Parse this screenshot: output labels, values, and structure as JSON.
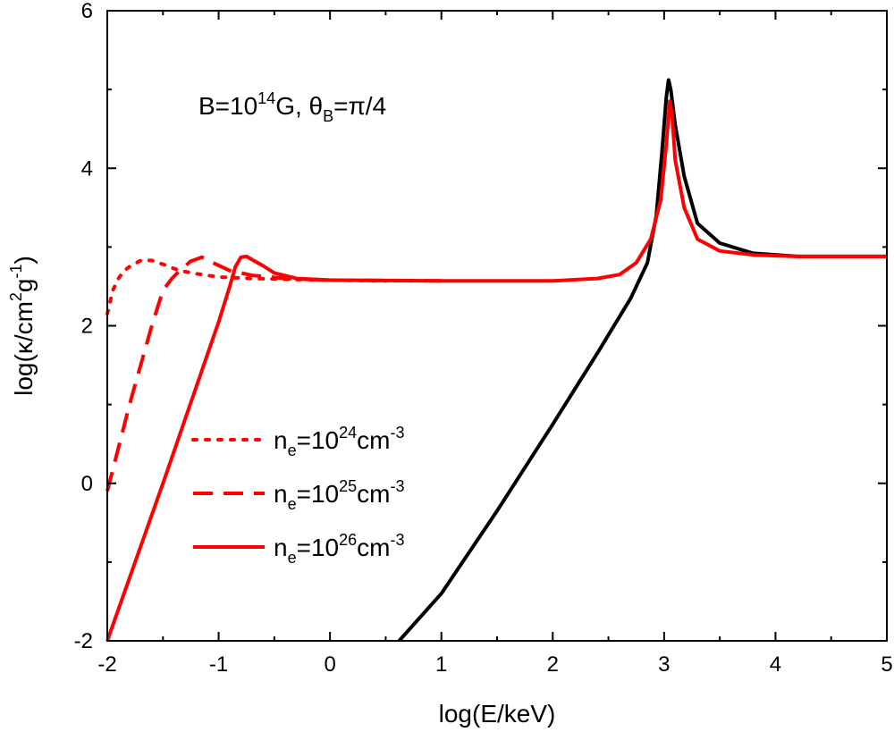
{
  "chart_data": {
    "type": "line",
    "xlabel": "log(E/keV)",
    "ylabel": "log(κ/cm²g⁻¹)",
    "ylabel_parts": {
      "prefix": "log(κ/cm",
      "sup1": "2",
      "mid": "g",
      "sup2": "-1",
      "suffix": ")"
    },
    "xlim": [
      -2,
      5
    ],
    "ylim": [
      -2,
      6
    ],
    "x_ticks": [
      -2,
      -1,
      0,
      1,
      2,
      3,
      4,
      5
    ],
    "y_ticks": [
      -2,
      0,
      2,
      4,
      6
    ],
    "x_tick_labels": [
      "-2",
      "-1",
      "0",
      "1",
      "2",
      "3",
      "4",
      "5"
    ],
    "y_tick_labels": [
      "-2",
      "0",
      "2",
      "4",
      "6"
    ],
    "grid": false,
    "legend_position": "lower-left",
    "annotation": {
      "B_prefix": "B=10",
      "B_exp": "14",
      "B_suffix": "G, ",
      "theta": "θ",
      "theta_sub": "B",
      "theta_rest": "=π/4"
    },
    "series": [
      {
        "name": "black",
        "color": "#000000",
        "style": "solid",
        "points": [
          [
            0.62,
            -2.0
          ],
          [
            1.0,
            -1.4
          ],
          [
            1.5,
            -0.35
          ],
          [
            2.0,
            0.75
          ],
          [
            2.4,
            1.65
          ],
          [
            2.7,
            2.35
          ],
          [
            2.85,
            2.8
          ],
          [
            2.93,
            3.4
          ],
          [
            2.98,
            4.2
          ],
          [
            3.02,
            4.9
          ],
          [
            3.04,
            5.12
          ],
          [
            3.06,
            5.0
          ],
          [
            3.1,
            4.55
          ],
          [
            3.18,
            3.9
          ],
          [
            3.3,
            3.3
          ],
          [
            3.5,
            3.05
          ],
          [
            3.8,
            2.92
          ],
          [
            4.2,
            2.88
          ],
          [
            5.0,
            2.88
          ]
        ]
      },
      {
        "name": "n_e=10^26cm^-3",
        "color": "#ff0000",
        "style": "solid",
        "legend": {
          "prefix": "n",
          "sub": "e",
          "mid": "=10",
          "sup": "26",
          "unit": "cm",
          "unit_sup": "-3"
        },
        "points": [
          [
            -2.0,
            -2.0
          ],
          [
            -1.5,
            0.0
          ],
          [
            -1.0,
            2.05
          ],
          [
            -0.9,
            2.5
          ],
          [
            -0.85,
            2.75
          ],
          [
            -0.8,
            2.87
          ],
          [
            -0.75,
            2.88
          ],
          [
            -0.7,
            2.84
          ],
          [
            -0.6,
            2.76
          ],
          [
            -0.5,
            2.67
          ],
          [
            -0.3,
            2.6
          ],
          [
            0.0,
            2.58
          ],
          [
            1.0,
            2.57
          ],
          [
            2.0,
            2.57
          ],
          [
            2.4,
            2.6
          ],
          [
            2.6,
            2.65
          ],
          [
            2.75,
            2.8
          ],
          [
            2.88,
            3.1
          ],
          [
            2.97,
            3.6
          ],
          [
            3.02,
            4.3
          ],
          [
            3.05,
            4.85
          ],
          [
            3.07,
            4.7
          ],
          [
            3.1,
            4.1
          ],
          [
            3.18,
            3.5
          ],
          [
            3.3,
            3.1
          ],
          [
            3.5,
            2.95
          ],
          [
            3.8,
            2.9
          ],
          [
            4.2,
            2.88
          ],
          [
            5.0,
            2.88
          ]
        ]
      },
      {
        "name": "n_e=10^25cm^-3",
        "color": "#ff0000",
        "style": "dashed",
        "legend": {
          "prefix": "n",
          "sub": "e",
          "mid": "=10",
          "sup": "25",
          "unit": "cm",
          "unit_sup": "-3"
        },
        "points": [
          [
            -2.0,
            -0.1
          ],
          [
            -1.8,
            1.0
          ],
          [
            -1.6,
            2.0
          ],
          [
            -1.5,
            2.45
          ],
          [
            -1.42,
            2.6
          ],
          [
            -1.35,
            2.7
          ],
          [
            -1.25,
            2.82
          ],
          [
            -1.15,
            2.87
          ],
          [
            -1.05,
            2.8
          ],
          [
            -0.9,
            2.7
          ],
          [
            -0.7,
            2.64
          ],
          [
            -0.4,
            2.6
          ],
          [
            0.0,
            2.58
          ],
          [
            1.0,
            2.57
          ]
        ]
      },
      {
        "name": "n_e=10^24cm^-3",
        "color": "#ff0000",
        "style": "dotted",
        "legend": {
          "prefix": "n",
          "sub": "e",
          "mid": "=10",
          "sup": "24",
          "unit": "cm",
          "unit_sup": "-3"
        },
        "points": [
          [
            -2.0,
            2.15
          ],
          [
            -1.95,
            2.45
          ],
          [
            -1.9,
            2.6
          ],
          [
            -1.85,
            2.7
          ],
          [
            -1.8,
            2.75
          ],
          [
            -1.7,
            2.83
          ],
          [
            -1.6,
            2.83
          ],
          [
            -1.5,
            2.78
          ],
          [
            -1.35,
            2.7
          ],
          [
            -1.2,
            2.66
          ],
          [
            -1.0,
            2.62
          ],
          [
            -0.7,
            2.6
          ],
          [
            -0.4,
            2.59
          ],
          [
            0.0,
            2.58
          ],
          [
            0.5,
            2.57
          ]
        ]
      }
    ]
  }
}
